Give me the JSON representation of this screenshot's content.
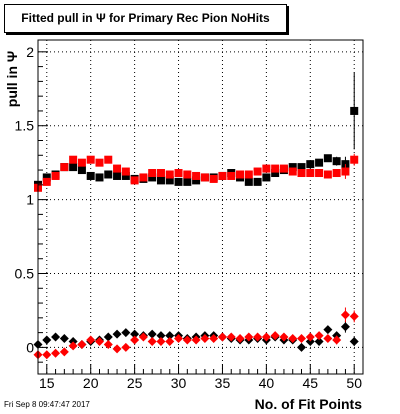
{
  "title": "Fitted pull in Ψ  for Primary Rec Pion NoHits",
  "datestamp": "Fri Sep  8 09:47:47 2017",
  "chart_data": {
    "type": "scatter",
    "title": "Fitted pull in Ψ  for Primary Rec Pion NoHits",
    "xlabel": "No. of Fit Points",
    "ylabel": "pull in Ψ",
    "xlim": [
      14,
      51
    ],
    "ylim": [
      -0.18,
      2.08
    ],
    "xticks": [
      15,
      20,
      25,
      30,
      35,
      40,
      45,
      50
    ],
    "yticks": [
      0,
      0.5,
      1,
      1.5,
      2
    ],
    "ytick_labels": [
      "0",
      "0.5",
      "1",
      "1.5",
      "2"
    ],
    "grid": true,
    "x": [
      14,
      15,
      16,
      17,
      18,
      19,
      20,
      21,
      22,
      23,
      24,
      25,
      26,
      27,
      28,
      29,
      30,
      31,
      32,
      33,
      34,
      35,
      36,
      37,
      38,
      39,
      40,
      41,
      42,
      43,
      44,
      45,
      46,
      47,
      48,
      49,
      50
    ],
    "series": [
      {
        "name": "",
        "marker": "square",
        "color": "#000000",
        "values": [
          1.1,
          1.15,
          1.17,
          1.22,
          1.22,
          1.2,
          1.16,
          1.15,
          1.17,
          1.16,
          1.16,
          1.14,
          1.14,
          1.15,
          1.13,
          1.13,
          1.12,
          1.12,
          1.13,
          1.15,
          1.15,
          1.16,
          1.18,
          1.15,
          1.12,
          1.12,
          1.15,
          1.18,
          1.2,
          1.22,
          1.22,
          1.24,
          1.25,
          1.28,
          1.26,
          1.24,
          1.6
        ],
        "errors": [
          0,
          0,
          0,
          0,
          0,
          0,
          0,
          0,
          0,
          0,
          0,
          0,
          0,
          0,
          0,
          0,
          0,
          0,
          0,
          0,
          0,
          0,
          0,
          0,
          0,
          0,
          0,
          0,
          0,
          0,
          0,
          0,
          0.02,
          0.02,
          0.03,
          0.05,
          0.26
        ]
      },
      {
        "name": "",
        "marker": "square",
        "color": "#ff0000",
        "values": [
          1.08,
          1.12,
          1.16,
          1.22,
          1.27,
          1.25,
          1.27,
          1.25,
          1.27,
          1.21,
          1.19,
          1.13,
          1.15,
          1.18,
          1.18,
          1.17,
          1.18,
          1.17,
          1.16,
          1.15,
          1.14,
          1.16,
          1.16,
          1.17,
          1.17,
          1.19,
          1.21,
          1.21,
          1.21,
          1.19,
          1.18,
          1.18,
          1.18,
          1.17,
          1.18,
          1.19,
          1.27
        ],
        "errors": [
          0,
          0,
          0,
          0,
          0,
          0,
          0,
          0,
          0,
          0,
          0,
          0,
          0,
          0,
          0,
          0,
          0,
          0,
          0,
          0,
          0,
          0,
          0,
          0,
          0,
          0,
          0,
          0,
          0,
          0,
          0,
          0,
          0,
          0.02,
          0.02,
          0.05,
          0.04
        ]
      },
      {
        "name": "",
        "marker": "diamond",
        "color": "#000000",
        "values": [
          0.02,
          0.05,
          0.07,
          0.06,
          0.04,
          0.02,
          0.04,
          0.05,
          0.07,
          0.09,
          0.1,
          0.09,
          0.08,
          0.09,
          0.08,
          0.08,
          0.08,
          0.06,
          0.07,
          0.08,
          0.08,
          0.07,
          0.06,
          0.05,
          0.05,
          0.06,
          0.05,
          0.07,
          0.05,
          0.05,
          0.0,
          0.04,
          0.04,
          0.12,
          0.08,
          0.14,
          0.04
        ],
        "errors": [
          0,
          0,
          0,
          0,
          0,
          0,
          0,
          0,
          0,
          0,
          0,
          0,
          0,
          0,
          0,
          0,
          0,
          0,
          0,
          0,
          0,
          0,
          0,
          0,
          0,
          0,
          0,
          0,
          0,
          0,
          0,
          0,
          0,
          0,
          0,
          0.04,
          0.03
        ]
      },
      {
        "name": "",
        "marker": "diamond",
        "color": "#ff0000",
        "values": [
          -0.05,
          -0.05,
          -0.04,
          -0.03,
          0.01,
          0.02,
          0.05,
          0.04,
          0.02,
          -0.01,
          0.0,
          0.05,
          0.07,
          0.04,
          0.04,
          0.04,
          0.06,
          0.05,
          0.05,
          0.06,
          0.06,
          0.07,
          0.07,
          0.06,
          0.07,
          0.07,
          0.07,
          0.08,
          0.07,
          0.06,
          0.06,
          0.07,
          0.08,
          0.06,
          0.05,
          0.22,
          0.21
        ],
        "errors": [
          0,
          0,
          0,
          0,
          0,
          0,
          0,
          0,
          0,
          0,
          0,
          0,
          0,
          0,
          0,
          0,
          0,
          0,
          0,
          0,
          0,
          0,
          0,
          0,
          0,
          0,
          0,
          0,
          0,
          0,
          0,
          0,
          0,
          0,
          0.03,
          0.05,
          0.04
        ]
      }
    ]
  }
}
